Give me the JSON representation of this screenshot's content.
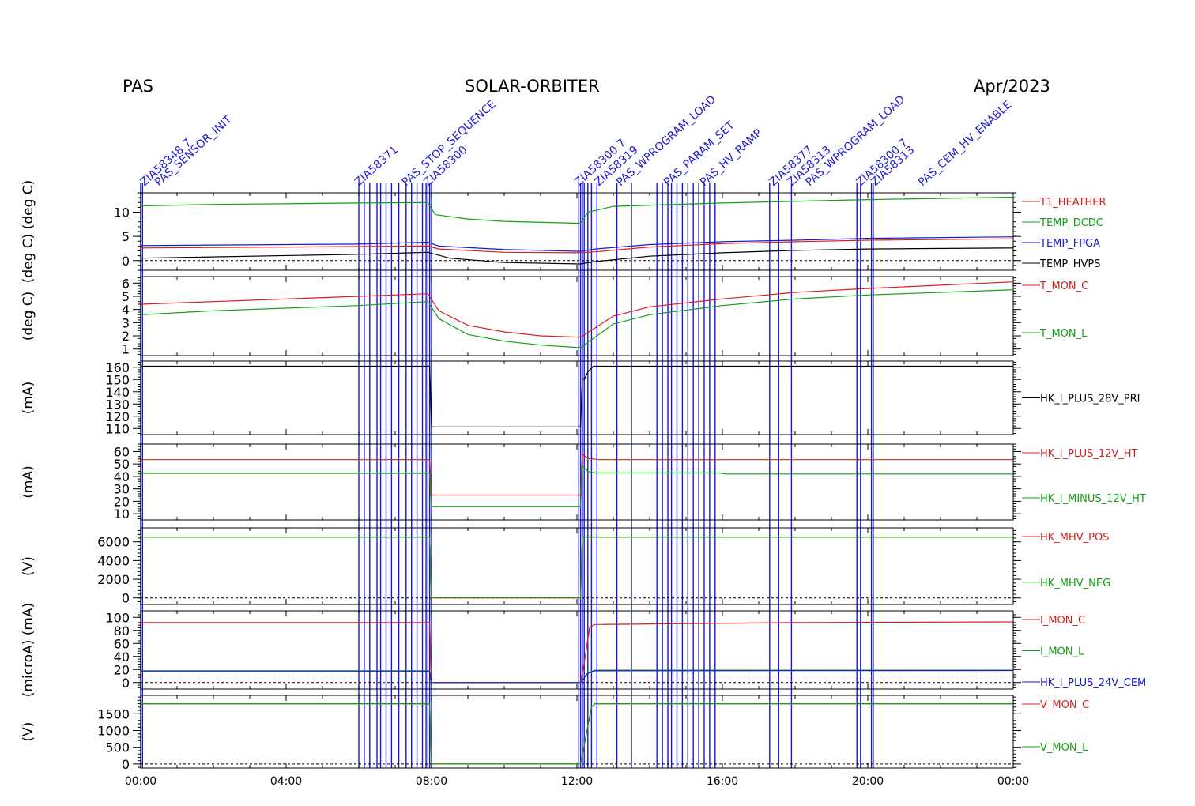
{
  "header": {
    "left": "PAS",
    "center": "SOLAR-ORBITER",
    "right": "Apr/2023"
  },
  "colors": {
    "red": "#d42020",
    "green": "#12a012",
    "blue": "#1a1ac8",
    "black": "#000000",
    "olive": "#7a6010",
    "event": "#1a1ac8"
  },
  "chart_data": [
    {
      "type": "line",
      "ylabel": "(deg C)  (deg C)",
      "ylim": [
        -2,
        14
      ],
      "yticks": [
        0,
        5,
        10
      ],
      "zero_line": true,
      "series": [
        {
          "name": "T1_HEATHER",
          "color": "red",
          "x": [
            0,
            6,
            7.9,
            8.2,
            10,
            12.1,
            12.5,
            14,
            16,
            18,
            20,
            24
          ],
          "values": [
            2.6,
            2.9,
            3.0,
            2.4,
            1.7,
            1.6,
            1.8,
            2.8,
            3.5,
            3.9,
            4.2,
            4.5
          ]
        },
        {
          "name": "TEMP_DCDC",
          "color": "green",
          "x": [
            0,
            2,
            6,
            7.9,
            8.1,
            9,
            10,
            12.1,
            12.3,
            13,
            16,
            20,
            24
          ],
          "values": [
            11.3,
            11.6,
            11.9,
            12.0,
            9.5,
            8.6,
            8.1,
            7.7,
            10.0,
            11.2,
            11.9,
            12.6,
            13.1
          ]
        },
        {
          "name": "TEMP_FPGA",
          "color": "blue",
          "x": [
            0,
            6,
            7.9,
            8.2,
            10,
            12.1,
            12.5,
            14,
            16,
            18,
            20,
            24
          ],
          "values": [
            3.1,
            3.4,
            3.8,
            3.0,
            2.3,
            1.9,
            2.4,
            3.3,
            3.9,
            4.2,
            4.6,
            4.9
          ]
        },
        {
          "name": "TEMP_HVPS",
          "color": "black",
          "x": [
            0,
            6,
            7.9,
            8.5,
            10,
            12.1,
            12.5,
            14,
            16,
            18,
            20,
            24
          ],
          "values": [
            0.5,
            1.3,
            1.7,
            0.5,
            -0.4,
            -0.7,
            -0.2,
            0.9,
            1.6,
            2.1,
            2.4,
            2.6
          ]
        }
      ]
    },
    {
      "type": "line",
      "ylabel": "(deg C)",
      "ylim": [
        0.5,
        6.5
      ],
      "yticks": [
        1,
        2,
        3,
        4,
        5,
        6
      ],
      "zero_line": false,
      "series": [
        {
          "name": "T_MON_C",
          "color": "red",
          "x": [
            0,
            2,
            6,
            7.9,
            8.2,
            9,
            10,
            11,
            12.1,
            12.5,
            13,
            14,
            16,
            18,
            20,
            24
          ],
          "values": [
            4.4,
            4.6,
            5.0,
            5.2,
            3.9,
            2.8,
            2.3,
            2.0,
            1.9,
            2.6,
            3.5,
            4.2,
            4.8,
            5.3,
            5.6,
            6.1
          ]
        },
        {
          "name": "T_MON_L",
          "color": "green",
          "x": [
            0,
            2,
            6,
            7.9,
            8.2,
            9,
            10,
            11,
            12.1,
            12.5,
            13,
            14,
            16,
            18,
            20,
            24
          ],
          "values": [
            3.6,
            3.9,
            4.3,
            4.6,
            3.3,
            2.1,
            1.6,
            1.3,
            1.1,
            1.9,
            2.9,
            3.6,
            4.3,
            4.8,
            5.1,
            5.5
          ]
        }
      ]
    },
    {
      "type": "line",
      "ylabel": "(mA)",
      "ylim": [
        105,
        165
      ],
      "yticks": [
        110,
        120,
        130,
        140,
        150,
        160
      ],
      "zero_line": false,
      "series": [
        {
          "name": "HK_I_PLUS_28V_PRI",
          "color": "black",
          "x": [
            0,
            7.95,
            8.0,
            12.1,
            12.15,
            12.2,
            12.3,
            12.45,
            24
          ],
          "values": [
            160.8,
            160.8,
            111.2,
            111.2,
            151,
            150,
            156,
            160.8,
            160.8
          ]
        }
      ]
    },
    {
      "type": "line",
      "ylabel": "(mA)",
      "ylim": [
        5,
        66
      ],
      "yticks": [
        10,
        20,
        30,
        40,
        50,
        60
      ],
      "zero_line": false,
      "series": [
        {
          "name": "HK_I_PLUS_12V_HT",
          "color": "red",
          "x": [
            0,
            7.95,
            8.0,
            12.1,
            12.15,
            12.3,
            12.6,
            24
          ],
          "values": [
            53.5,
            53.5,
            25,
            25,
            58,
            54.5,
            53.5,
            53.5
          ]
        },
        {
          "name": "HK_I_MINUS_12V_HT",
          "color": "green",
          "x": [
            0,
            7.95,
            8.0,
            12.1,
            12.15,
            12.3,
            12.5,
            15.9,
            16.1,
            24
          ],
          "values": [
            42.5,
            42.5,
            16,
            16,
            48,
            44,
            42.8,
            42.8,
            42,
            42
          ]
        }
      ]
    },
    {
      "type": "line",
      "ylabel": "(V)",
      "ylim": [
        -700,
        7500
      ],
      "yticks": [
        0,
        2000,
        4000,
        6000
      ],
      "zero_line": true,
      "series": [
        {
          "name": "HK_MHV_POS",
          "color": "red",
          "x": [
            0,
            7.95,
            8.0,
            12.1,
            12.15,
            24
          ],
          "values": [
            6500,
            6500,
            0,
            0,
            6500,
            6500
          ]
        },
        {
          "name": "HK_MHV_NEG",
          "color": "green",
          "x": [
            0,
            7.95,
            8.0,
            12.1,
            12.15,
            24
          ],
          "values": [
            6520,
            6520,
            60,
            60,
            6520,
            6520
          ]
        }
      ]
    },
    {
      "type": "line",
      "ylabel": "(microA)  (mA)",
      "ylim": [
        -10,
        110
      ],
      "yticks": [
        0,
        20,
        40,
        60,
        80,
        100
      ],
      "zero_line": true,
      "series": [
        {
          "name": "I_MON_C",
          "color": "red",
          "x": [
            0,
            7.95,
            8.0,
            12.1,
            12.2,
            12.35,
            12.5,
            18,
            24
          ],
          "values": [
            92,
            92,
            0,
            0,
            30,
            85,
            89,
            92,
            93
          ]
        },
        {
          "name": "I_MON_L",
          "color": "green",
          "x": [
            0,
            7.95,
            8.0,
            12.1,
            12.3,
            12.5,
            24
          ],
          "values": [
            18,
            18,
            0,
            0,
            15,
            19,
            19
          ]
        },
        {
          "name": "HK_I_PLUS_24V_CEM",
          "color": "blue",
          "x": [
            0,
            7.95,
            8.0,
            12.1,
            12.3,
            12.5,
            24
          ],
          "values": [
            17.5,
            17.5,
            0,
            0,
            14,
            18,
            18.5
          ]
        }
      ]
    },
    {
      "type": "line",
      "ylabel": "(V)",
      "ylim": [
        -120,
        2050
      ],
      "yticks": [
        0,
        500,
        1000,
        1500
      ],
      "zero_line": true,
      "series": [
        {
          "name": "V_MON_C",
          "color": "red",
          "x": [
            0,
            7.95,
            8.0,
            12.1,
            12.4,
            12.5,
            24
          ],
          "values": [
            1800,
            1800,
            0,
            0,
            1700,
            1800,
            1800
          ]
        },
        {
          "name": "V_MON_L",
          "color": "green",
          "x": [
            0,
            7.95,
            8.0,
            12.1,
            12.4,
            12.5,
            24
          ],
          "values": [
            1800,
            1800,
            0,
            0,
            1700,
            1800,
            1800
          ]
        }
      ]
    }
  ],
  "x_axis": {
    "range": [
      0,
      24
    ],
    "tick_hours": [
      0,
      4,
      8,
      12,
      16,
      20,
      24
    ],
    "tick_labels": [
      "00:00",
      "04:00",
      "08:00",
      "12:00",
      "16:00",
      "20:00",
      "00:00"
    ]
  },
  "events": {
    "hours": [
      0.0,
      0.05,
      6.0,
      6.15,
      6.3,
      6.5,
      6.6,
      6.75,
      6.9,
      7.1,
      7.3,
      7.45,
      7.6,
      7.75,
      7.85,
      7.9,
      7.95,
      8.0,
      12.05,
      12.1,
      12.15,
      12.2,
      12.3,
      12.4,
      12.55,
      13.1,
      13.5,
      14.2,
      14.35,
      14.5,
      14.6,
      14.75,
      14.9,
      15.05,
      15.2,
      15.35,
      15.5,
      15.65,
      15.8,
      17.3,
      17.55,
      17.9,
      19.7,
      19.8,
      20.1,
      20.15
    ],
    "labels": [
      {
        "hour": 0.1,
        "text": "ZIA58348 7"
      },
      {
        "hour": 0.5,
        "text": "PAS_SENSOR_INIT"
      },
      {
        "hour": 6.0,
        "text": "ZIA58371"
      },
      {
        "hour": 7.3,
        "text": "PAS_STOP_SEQUENCE"
      },
      {
        "hour": 7.9,
        "text": "ZIA58300"
      },
      {
        "hour": 12.05,
        "text": "ZIA58300 7"
      },
      {
        "hour": 12.6,
        "text": "ZIA58319"
      },
      {
        "hour": 13.2,
        "text": "PAS_WPROGRAM_LOAD"
      },
      {
        "hour": 14.5,
        "text": "PAS_PARAM_SET"
      },
      {
        "hour": 15.5,
        "text": "PAS_HV_RAMP"
      },
      {
        "hour": 17.4,
        "text": "ZIA58377"
      },
      {
        "hour": 17.9,
        "text": "ZIA58313"
      },
      {
        "hour": 18.4,
        "text": "PAS_WPROGRAM_LOAD"
      },
      {
        "hour": 19.8,
        "text": "ZIA58300 7"
      },
      {
        "hour": 20.2,
        "text": "ZIA58313"
      },
      {
        "hour": 21.5,
        "text": "PAS_CEM_HV_ENABLE"
      }
    ]
  }
}
